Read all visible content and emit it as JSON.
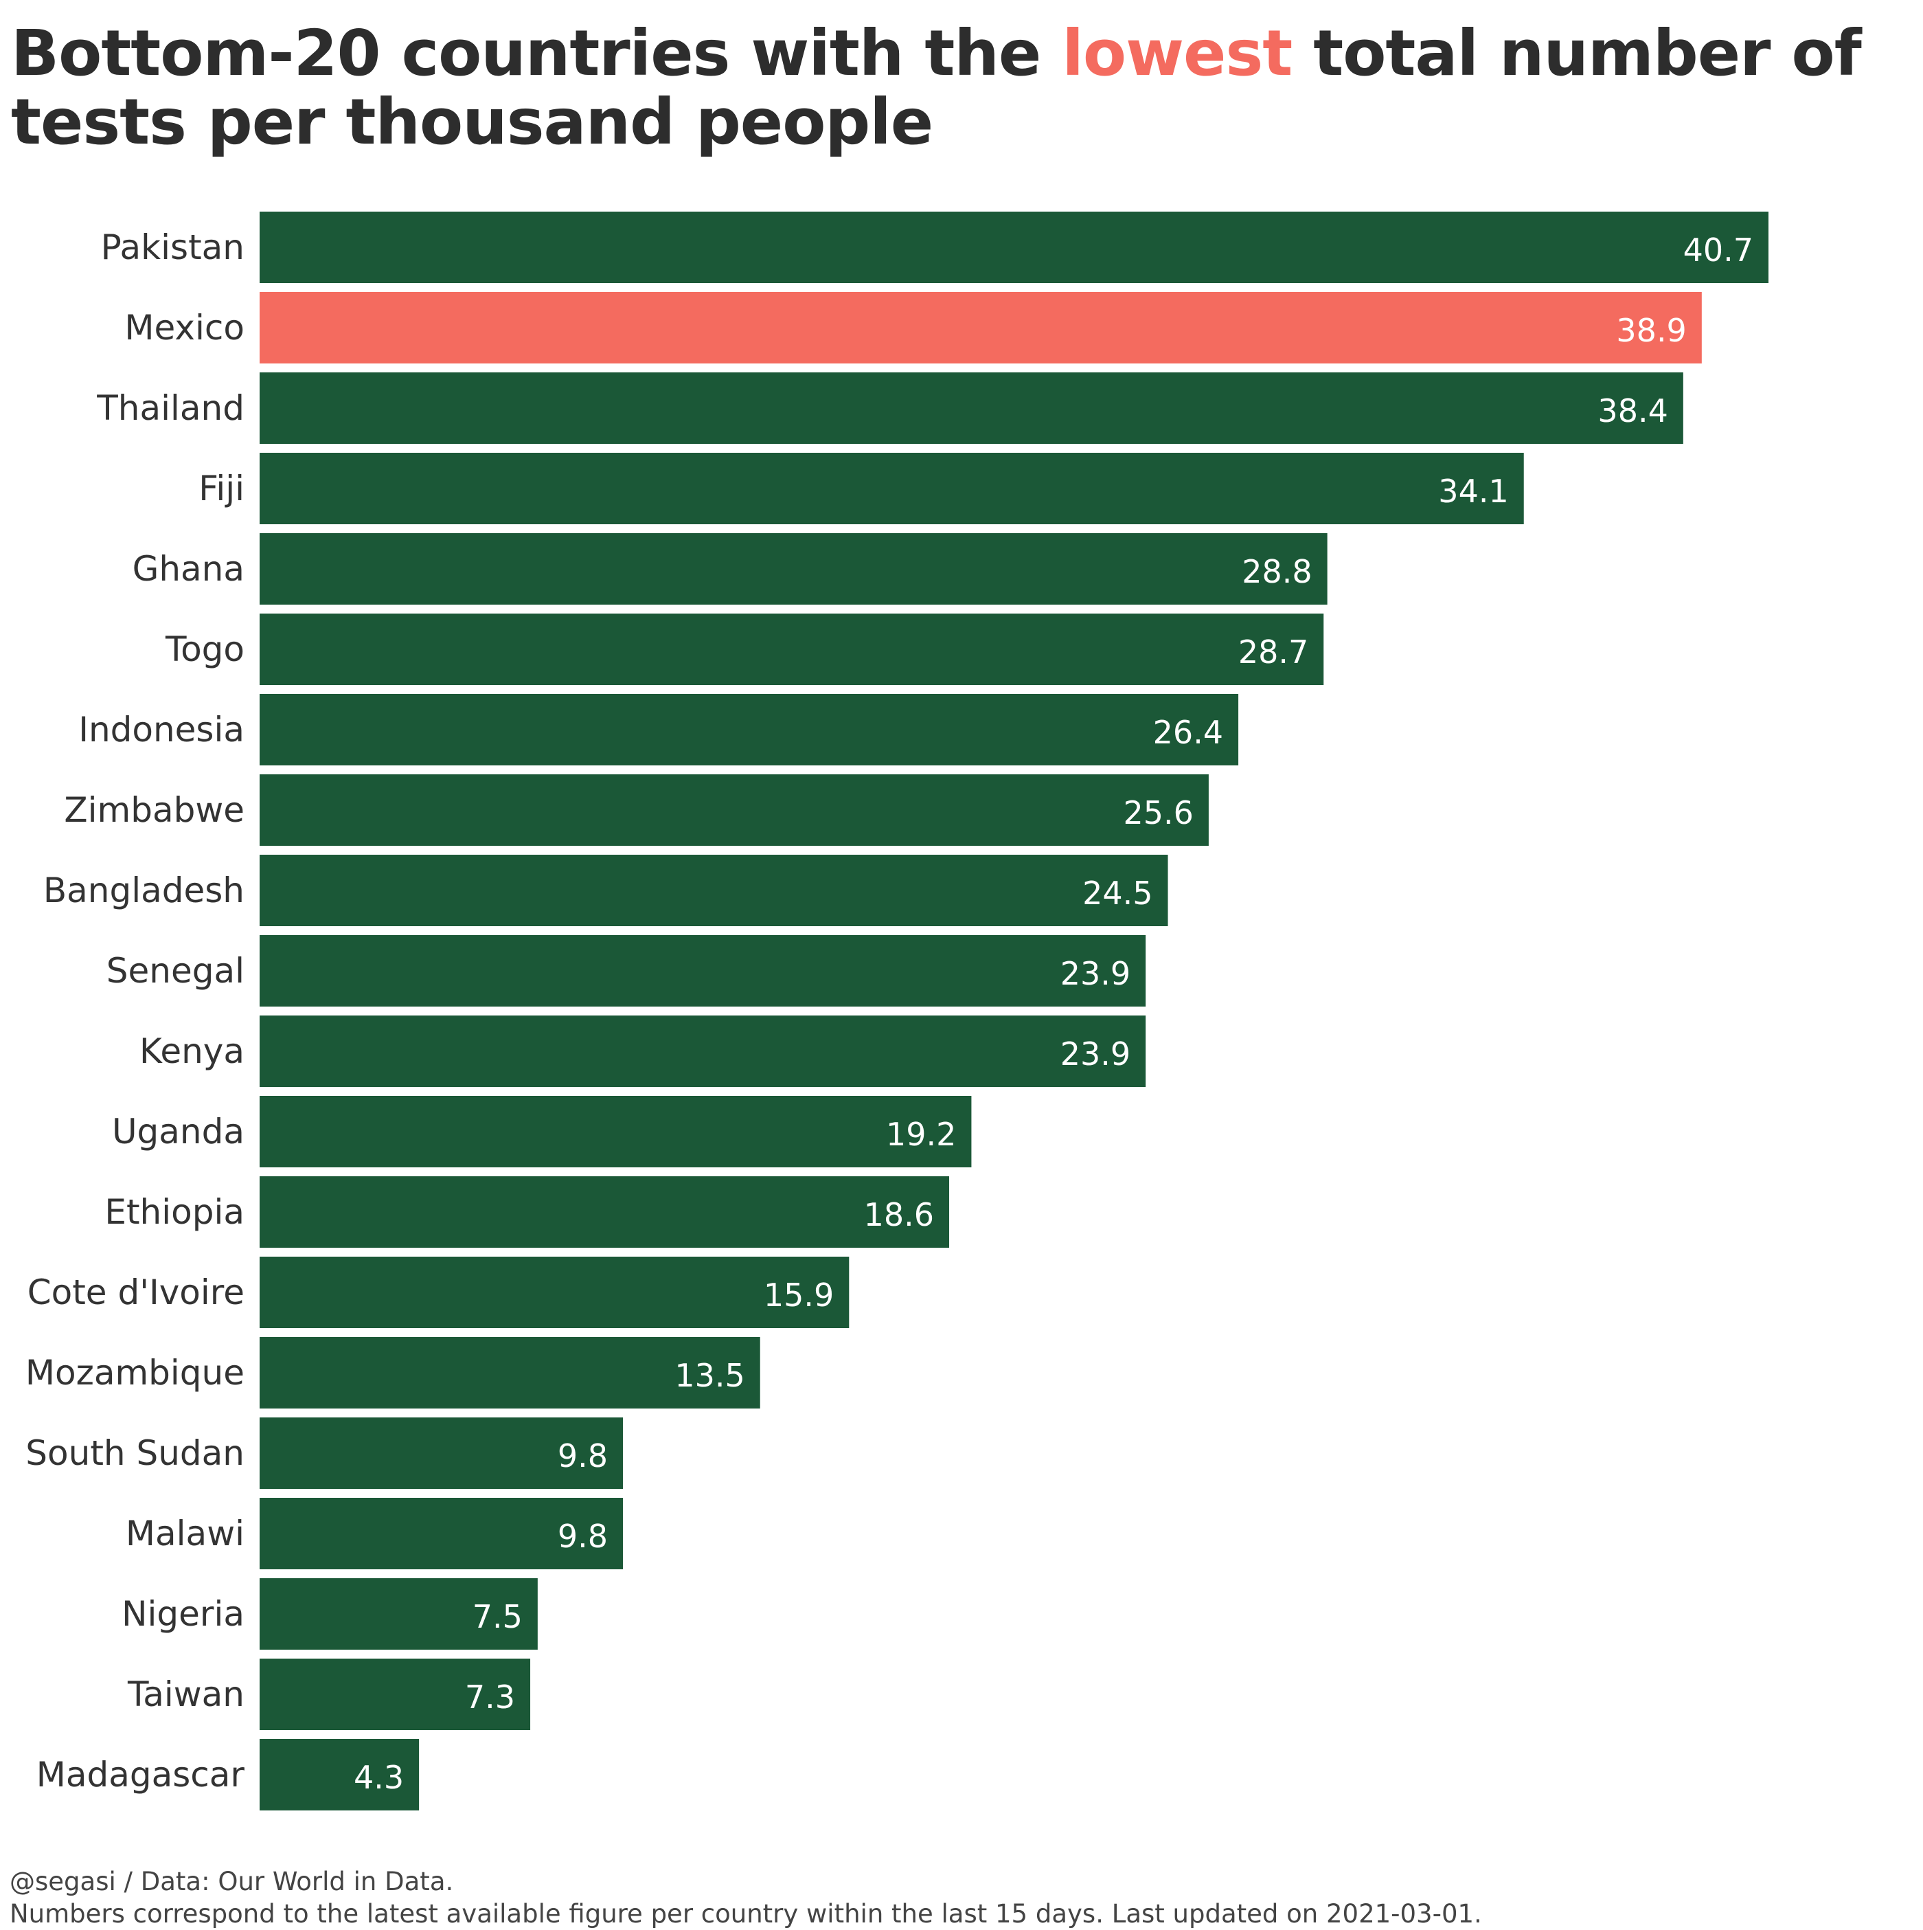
{
  "title": {
    "before": "Bottom-20 countries with the ",
    "highlight": "lowest",
    "after": " total number of tests per thousand people",
    "highlight_color": "#f46b5f"
  },
  "footer": {
    "line1": "@segasi / Data: Our World in Data.",
    "line2": "Numbers correspond to the latest available figure per country within the last 15 days. Last updated on 2021-03-01."
  },
  "chart_data": {
    "type": "bar",
    "orientation": "horizontal",
    "categories": [
      "Pakistan",
      "Mexico",
      "Thailand",
      "Fiji",
      "Ghana",
      "Togo",
      "Indonesia",
      "Zimbabwe",
      "Bangladesh",
      "Senegal",
      "Kenya",
      "Uganda",
      "Ethiopia",
      "Cote d'Ivoire",
      "Mozambique",
      "South Sudan",
      "Malawi",
      "Nigeria",
      "Taiwan",
      "Madagascar"
    ],
    "values": [
      40.7,
      38.9,
      38.4,
      34.1,
      28.8,
      28.7,
      26.4,
      25.6,
      24.5,
      23.9,
      23.9,
      19.2,
      18.6,
      15.9,
      13.5,
      9.8,
      9.8,
      7.5,
      7.3,
      4.3
    ],
    "value_labels": [
      "40.7",
      "38.9",
      "38.4",
      "34.1",
      "28.8",
      "28.7",
      "26.4",
      "25.6",
      "24.5",
      "23.9",
      "23.9",
      "19.2",
      "18.6",
      "15.9",
      "13.5",
      "9.8",
      "9.8",
      "7.5",
      "7.3",
      "4.3"
    ],
    "highlight_category": "Mexico",
    "bar_color": "#1b5837",
    "highlight_color": "#f46b5f",
    "xlim": [
      0,
      40.7
    ],
    "grid": false,
    "legend": "none"
  }
}
